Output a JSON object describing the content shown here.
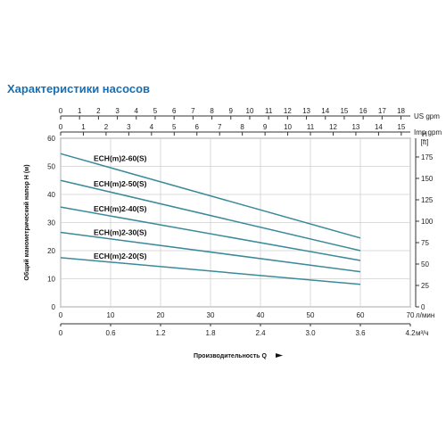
{
  "title": "Характеристики насосов",
  "colors": {
    "title": "#1a6faf",
    "curve": "#3a8a9a",
    "grid": "#cfcfcf",
    "axis": "#333333"
  },
  "chart_data": {
    "type": "line",
    "grid": true,
    "x_axis_primary": {
      "unit": "л/мин",
      "range": [
        0,
        70
      ],
      "ticks": [
        "0",
        "10",
        "20",
        "30",
        "40",
        "50",
        "60",
        "70"
      ]
    },
    "x_axis_secondary": {
      "unit": "м³/ч",
      "title": "Производительность Q",
      "ticks": [
        "0",
        "0.6",
        "1.2",
        "1.8",
        "2.4",
        "3.0",
        "3.6",
        "4.2"
      ]
    },
    "x_axis_top_us": {
      "unit": "US gpm",
      "ticks": [
        "0",
        "1",
        "2",
        "3",
        "4",
        "5",
        "6",
        "7",
        "8",
        "9",
        "10",
        "11",
        "12",
        "13",
        "14",
        "15",
        "16",
        "17",
        "18"
      ]
    },
    "x_axis_top_imp": {
      "unit": "Imp gpm",
      "ticks": [
        "0",
        "1",
        "2",
        "3",
        "4",
        "5",
        "6",
        "7",
        "8",
        "9",
        "10",
        "11",
        "12",
        "13",
        "14",
        "15"
      ]
    },
    "y_axis_left": {
      "title": "Общий манометрический напор H (м)",
      "range": [
        0,
        60
      ],
      "ticks": [
        "0",
        "10",
        "20",
        "30",
        "40",
        "50",
        "60"
      ]
    },
    "y_axis_right": {
      "unit_name": "H",
      "unit": "[ft]",
      "ticks": [
        "0",
        "25",
        "50",
        "75",
        "100",
        "125",
        "150",
        "175"
      ]
    },
    "series": [
      {
        "name": "ECH(m)2-60(S)",
        "x": [
          0,
          60
        ],
        "y": [
          54.5,
          24.5
        ]
      },
      {
        "name": "ECH(m)2-50(S)",
        "x": [
          0,
          60
        ],
        "y": [
          45.0,
          20.0
        ]
      },
      {
        "name": "ECH(m)2-40(S)",
        "x": [
          0,
          60
        ],
        "y": [
          35.5,
          16.5
        ]
      },
      {
        "name": "ECH(m)2-30(S)",
        "x": [
          0,
          60
        ],
        "y": [
          26.5,
          12.5
        ]
      },
      {
        "name": "ECH(m)2-20(S)",
        "x": [
          0,
          60
        ],
        "y": [
          17.5,
          8.0
        ]
      }
    ]
  }
}
